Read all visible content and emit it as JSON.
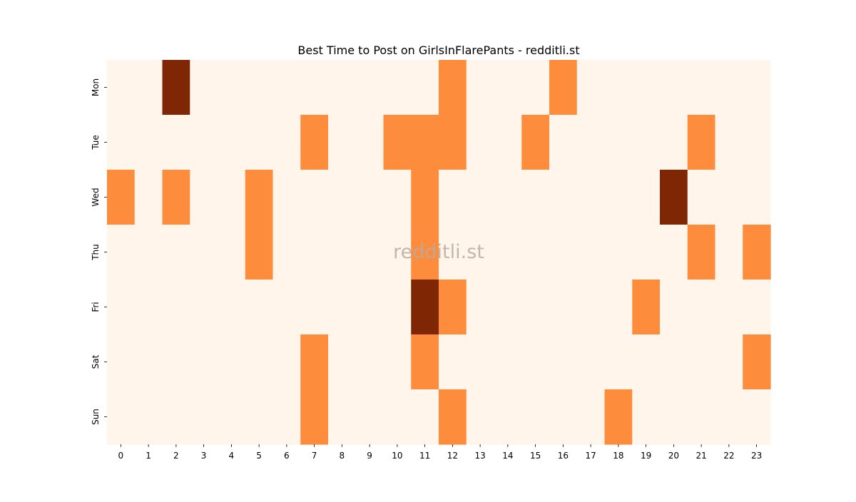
{
  "chart_data": {
    "type": "heatmap",
    "title": "Best Time to Post on GirlsInFlarePants - redditli.st",
    "watermark": "redditli.st",
    "x_labels": [
      "0",
      "1",
      "2",
      "3",
      "4",
      "5",
      "6",
      "7",
      "8",
      "9",
      "10",
      "11",
      "12",
      "13",
      "14",
      "15",
      "16",
      "17",
      "18",
      "19",
      "20",
      "21",
      "22",
      "23"
    ],
    "y_labels": [
      "Mon",
      "Tue",
      "Wed",
      "Thu",
      "Fri",
      "Sat",
      "Sun"
    ],
    "values": [
      [
        0,
        0,
        2,
        0,
        0,
        0,
        0,
        0,
        0,
        0,
        0,
        0,
        1,
        0,
        0,
        0,
        1,
        0,
        0,
        0,
        0,
        0,
        0,
        0
      ],
      [
        0,
        0,
        0,
        0,
        0,
        0,
        0,
        1,
        0,
        0,
        1,
        1,
        1,
        0,
        0,
        1,
        0,
        0,
        0,
        0,
        0,
        1,
        0,
        0
      ],
      [
        1,
        0,
        1,
        0,
        0,
        1,
        0,
        0,
        0,
        0,
        0,
        1,
        0,
        0,
        0,
        0,
        0,
        0,
        0,
        0,
        2,
        0,
        0,
        0
      ],
      [
        0,
        0,
        0,
        0,
        0,
        1,
        0,
        0,
        0,
        0,
        0,
        1,
        0,
        0,
        0,
        0,
        0,
        0,
        0,
        0,
        0,
        1,
        0,
        1
      ],
      [
        0,
        0,
        0,
        0,
        0,
        0,
        0,
        0,
        0,
        0,
        0,
        2,
        1,
        0,
        0,
        0,
        0,
        0,
        0,
        1,
        0,
        0,
        0,
        0
      ],
      [
        0,
        0,
        0,
        0,
        0,
        0,
        0,
        1,
        0,
        0,
        0,
        1,
        0,
        0,
        0,
        0,
        0,
        0,
        0,
        0,
        0,
        0,
        0,
        1
      ],
      [
        0,
        0,
        0,
        0,
        0,
        0,
        0,
        1,
        0,
        0,
        0,
        0,
        1,
        0,
        0,
        0,
        0,
        0,
        1,
        0,
        0,
        0,
        0,
        0
      ]
    ],
    "colormap": "Oranges",
    "colors": {
      "0": "#fff5eb",
      "1": "#fd8d3c",
      "2": "#7f2704"
    },
    "colorbar": false,
    "grid": false
  }
}
